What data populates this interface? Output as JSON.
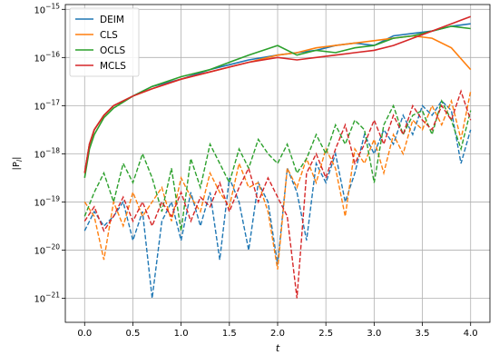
{
  "chart_data": {
    "type": "line",
    "xlabel": "t",
    "ylabel": "|P_l|",
    "ylabel_display": "|P",
    "ylabel_sub": "l",
    "ylabel_close": "|",
    "y_scale": "log",
    "xlim": [
      -0.2,
      4.2
    ],
    "ylim_exp": [
      -21.5,
      -14.9
    ],
    "x_ticks": [
      0.0,
      0.5,
      1.0,
      1.5,
      2.0,
      2.5,
      3.0,
      3.5,
      4.0
    ],
    "x_tick_labels": [
      "0.0",
      "0.5",
      "1.0",
      "1.5",
      "2.0",
      "2.5",
      "3.0",
      "3.5",
      "4.0"
    ],
    "y_tick_exponents": [
      -21,
      -20,
      -19,
      -18,
      -17,
      -16,
      -15
    ],
    "y_tick_labels": [
      "10",
      "10",
      "10",
      "10",
      "10",
      "10",
      "10"
    ],
    "y_tick_sup": [
      "−21",
      "−20",
      "−19",
      "−18",
      "−17",
      "−16",
      "−15"
    ],
    "grid": true,
    "legend_position": "top-left",
    "series": [
      {
        "name": "DEIM",
        "color": "#1f77b4",
        "solid": {
          "x": [
            0.0,
            0.05,
            0.1,
            0.2,
            0.3,
            0.5,
            0.7,
            1.0,
            1.3,
            1.5,
            1.7,
            2.0,
            2.2,
            2.4,
            2.6,
            2.8,
            3.0,
            3.2,
            3.4,
            3.6,
            3.8,
            4.0
          ],
          "y_exp": [
            -18.4,
            -17.8,
            -17.5,
            -17.2,
            -17.0,
            -16.8,
            -16.6,
            -16.45,
            -16.25,
            -16.15,
            -16.05,
            -15.95,
            -15.9,
            -15.85,
            -15.75,
            -15.7,
            -15.75,
            -15.55,
            -15.5,
            -15.45,
            -15.35,
            -15.3
          ]
        },
        "dashed": {
          "x": [
            0.0,
            0.1,
            0.2,
            0.3,
            0.4,
            0.5,
            0.6,
            0.7,
            0.8,
            0.9,
            1.0,
            1.1,
            1.2,
            1.3,
            1.4,
            1.5,
            1.6,
            1.7,
            1.8,
            1.9,
            2.0,
            2.1,
            2.2,
            2.3,
            2.4,
            2.5,
            2.6,
            2.7,
            2.8,
            2.9,
            3.0,
            3.1,
            3.2,
            3.3,
            3.4,
            3.5,
            3.6,
            3.7,
            3.8,
            3.9,
            4.0
          ],
          "y_exp": [
            -19.6,
            -19.2,
            -19.5,
            -19.3,
            -19.0,
            -19.8,
            -19.2,
            -21.0,
            -19.4,
            -19.0,
            -19.8,
            -18.8,
            -19.5,
            -18.8,
            -20.2,
            -18.5,
            -19.0,
            -20.0,
            -18.6,
            -19.0,
            -20.3,
            -18.3,
            -18.8,
            -19.8,
            -18.2,
            -18.6,
            -18.0,
            -19.0,
            -18.4,
            -17.6,
            -18.0,
            -17.5,
            -17.8,
            -17.2,
            -17.6,
            -17.0,
            -17.2,
            -16.9,
            -17.1,
            -18.2,
            -17.5
          ]
        }
      },
      {
        "name": "CLS",
        "color": "#ff7f0e",
        "solid": {
          "x": [
            0.0,
            0.05,
            0.1,
            0.2,
            0.3,
            0.5,
            0.7,
            1.0,
            1.3,
            1.5,
            1.7,
            2.0,
            2.2,
            2.4,
            2.6,
            2.8,
            3.0,
            3.2,
            3.4,
            3.6,
            3.8,
            4.0
          ],
          "y_exp": [
            -18.4,
            -17.8,
            -17.5,
            -17.2,
            -17.0,
            -16.8,
            -16.65,
            -16.45,
            -16.3,
            -16.2,
            -16.1,
            -15.95,
            -15.9,
            -15.8,
            -15.75,
            -15.7,
            -15.65,
            -15.6,
            -15.55,
            -15.6,
            -15.8,
            -16.25
          ]
        },
        "dashed": {
          "x": [
            0.0,
            0.1,
            0.2,
            0.3,
            0.4,
            0.5,
            0.6,
            0.7,
            0.8,
            0.9,
            1.0,
            1.1,
            1.2,
            1.3,
            1.4,
            1.5,
            1.6,
            1.7,
            1.8,
            1.9,
            2.0,
            2.1,
            2.2,
            2.3,
            2.4,
            2.5,
            2.6,
            2.7,
            2.8,
            2.9,
            3.0,
            3.1,
            3.2,
            3.3,
            3.4,
            3.5,
            3.6,
            3.7,
            3.8,
            3.9,
            4.0
          ],
          "y_exp": [
            -19.0,
            -19.3,
            -20.2,
            -19.0,
            -19.5,
            -18.8,
            -19.3,
            -19.0,
            -18.7,
            -19.4,
            -18.5,
            -18.9,
            -19.2,
            -18.4,
            -18.8,
            -19.1,
            -18.2,
            -18.7,
            -18.6,
            -19.2,
            -20.4,
            -18.3,
            -18.7,
            -18.1,
            -18.6,
            -17.9,
            -18.3,
            -19.3,
            -17.9,
            -18.2,
            -17.7,
            -18.4,
            -17.6,
            -18.0,
            -17.3,
            -17.5,
            -17.0,
            -17.4,
            -16.9,
            -17.7,
            -16.7
          ]
        }
      },
      {
        "name": "OCLS",
        "color": "#2ca02c",
        "solid": {
          "x": [
            0.0,
            0.05,
            0.1,
            0.2,
            0.3,
            0.5,
            0.7,
            1.0,
            1.3,
            1.5,
            1.7,
            2.0,
            2.2,
            2.4,
            2.6,
            2.8,
            3.0,
            3.2,
            3.4,
            3.6,
            3.8,
            4.0
          ],
          "y_exp": [
            -18.5,
            -17.9,
            -17.6,
            -17.25,
            -17.05,
            -16.8,
            -16.6,
            -16.4,
            -16.25,
            -16.1,
            -15.95,
            -15.75,
            -15.95,
            -15.85,
            -15.9,
            -15.8,
            -15.75,
            -15.6,
            -15.55,
            -15.45,
            -15.35,
            -15.4
          ]
        },
        "dashed": {
          "x": [
            0.0,
            0.1,
            0.2,
            0.3,
            0.4,
            0.5,
            0.6,
            0.7,
            0.8,
            0.9,
            1.0,
            1.1,
            1.2,
            1.3,
            1.4,
            1.5,
            1.6,
            1.7,
            1.8,
            1.9,
            2.0,
            2.1,
            2.2,
            2.3,
            2.4,
            2.5,
            2.6,
            2.7,
            2.8,
            2.9,
            3.0,
            3.1,
            3.2,
            3.3,
            3.4,
            3.5,
            3.6,
            3.7,
            3.8,
            3.9,
            4.0
          ],
          "y_exp": [
            -19.3,
            -18.8,
            -18.4,
            -19.0,
            -18.2,
            -18.6,
            -18.0,
            -18.5,
            -19.2,
            -18.3,
            -19.6,
            -18.1,
            -18.7,
            -17.8,
            -18.2,
            -18.6,
            -17.9,
            -18.3,
            -17.7,
            -18.0,
            -18.2,
            -17.8,
            -18.4,
            -18.1,
            -17.6,
            -18.0,
            -17.4,
            -17.8,
            -17.3,
            -17.5,
            -18.6,
            -17.4,
            -17.0,
            -17.6,
            -17.2,
            -17.1,
            -17.6,
            -16.9,
            -17.3,
            -17.9,
            -17.1
          ]
        }
      },
      {
        "name": "MCLS",
        "color": "#d62728",
        "solid": {
          "x": [
            0.0,
            0.05,
            0.1,
            0.2,
            0.3,
            0.5,
            0.7,
            1.0,
            1.3,
            1.5,
            1.7,
            2.0,
            2.2,
            2.4,
            2.6,
            2.8,
            3.0,
            3.2,
            3.4,
            3.6,
            3.8,
            4.0
          ],
          "y_exp": [
            -18.4,
            -17.8,
            -17.5,
            -17.2,
            -17.0,
            -16.8,
            -16.65,
            -16.45,
            -16.3,
            -16.2,
            -16.1,
            -16.0,
            -16.05,
            -16.0,
            -15.95,
            -15.9,
            -15.85,
            -15.75,
            -15.6,
            -15.45,
            -15.3,
            -15.15
          ]
        },
        "dashed": {
          "x": [
            0.0,
            0.1,
            0.2,
            0.3,
            0.4,
            0.5,
            0.6,
            0.7,
            0.8,
            0.9,
            1.0,
            1.1,
            1.2,
            1.3,
            1.4,
            1.5,
            1.6,
            1.7,
            1.8,
            1.9,
            2.0,
            2.1,
            2.2,
            2.3,
            2.4,
            2.5,
            2.6,
            2.7,
            2.8,
            2.9,
            3.0,
            3.1,
            3.2,
            3.3,
            3.4,
            3.5,
            3.6,
            3.7,
            3.8,
            3.9,
            4.0
          ],
          "y_exp": [
            -19.4,
            -19.1,
            -19.6,
            -19.3,
            -18.9,
            -19.4,
            -19.0,
            -19.5,
            -19.0,
            -19.3,
            -18.8,
            -19.4,
            -18.9,
            -19.1,
            -18.6,
            -19.2,
            -18.7,
            -18.3,
            -19.0,
            -18.5,
            -18.9,
            -19.3,
            -21.0,
            -18.4,
            -18.0,
            -18.5,
            -17.9,
            -17.4,
            -18.2,
            -17.8,
            -17.3,
            -17.8,
            -17.2,
            -17.6,
            -17.0,
            -17.3,
            -17.5,
            -17.0,
            -17.3,
            -16.7,
            -17.3
          ]
        }
      }
    ]
  }
}
